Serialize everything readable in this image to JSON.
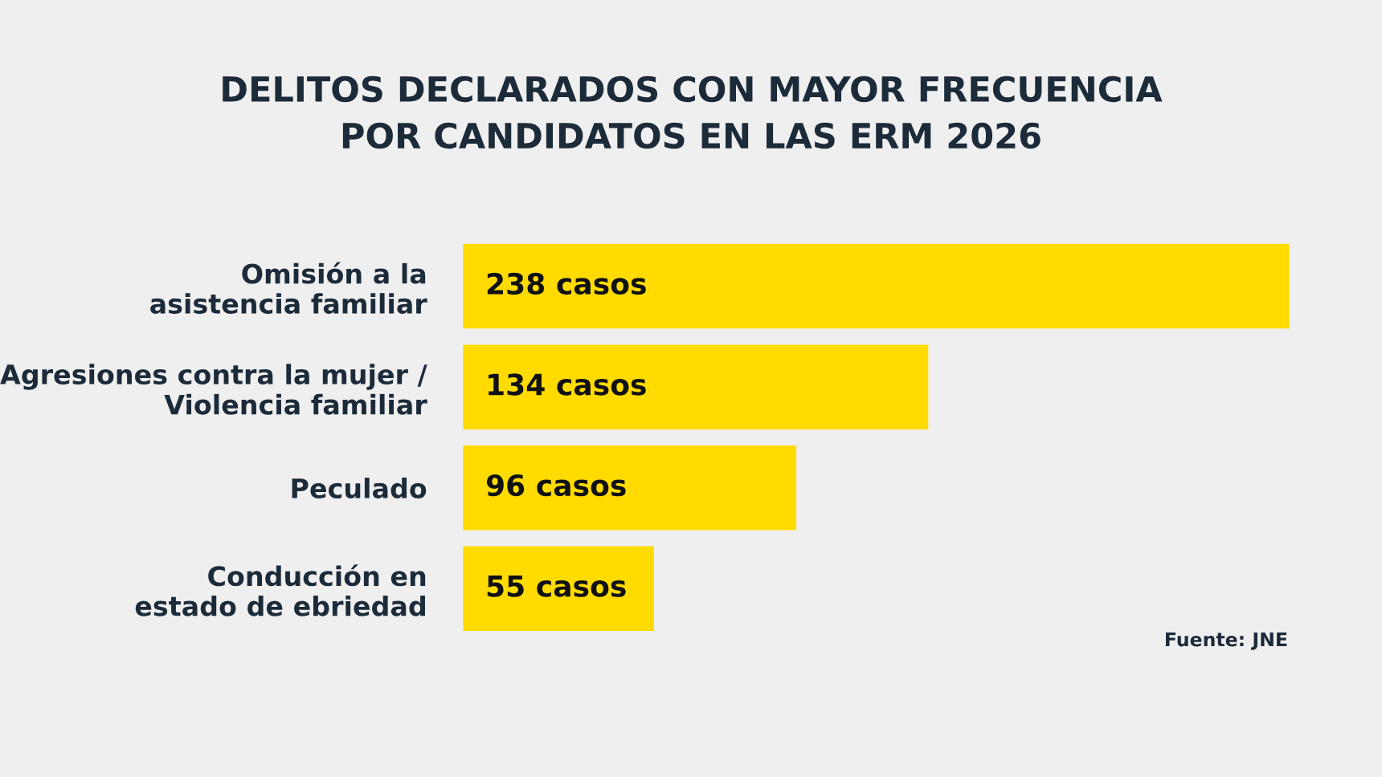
{
  "chart_data": {
    "type": "bar",
    "orientation": "horizontal",
    "title": "DELITOS DECLARADOS CON MAYOR FRECUENCIA\nPOR CANDIDATOS EN LAS ERM 2026",
    "categories": [
      "Omisión a la\nasistencia familiar",
      "Agresiones contra la mujer /\nViolencia familiar",
      "Peculado",
      "Conducción en\nestado de ebriedad"
    ],
    "values": [
      238,
      134,
      96,
      55
    ],
    "value_labels": [
      "238 casos",
      "134 casos",
      "96 casos",
      "55 casos"
    ],
    "color": "#ffdb00",
    "annotations": [
      "Fuente: JNE"
    ],
    "grid": false,
    "legend": false,
    "tick_labels": "y"
  }
}
